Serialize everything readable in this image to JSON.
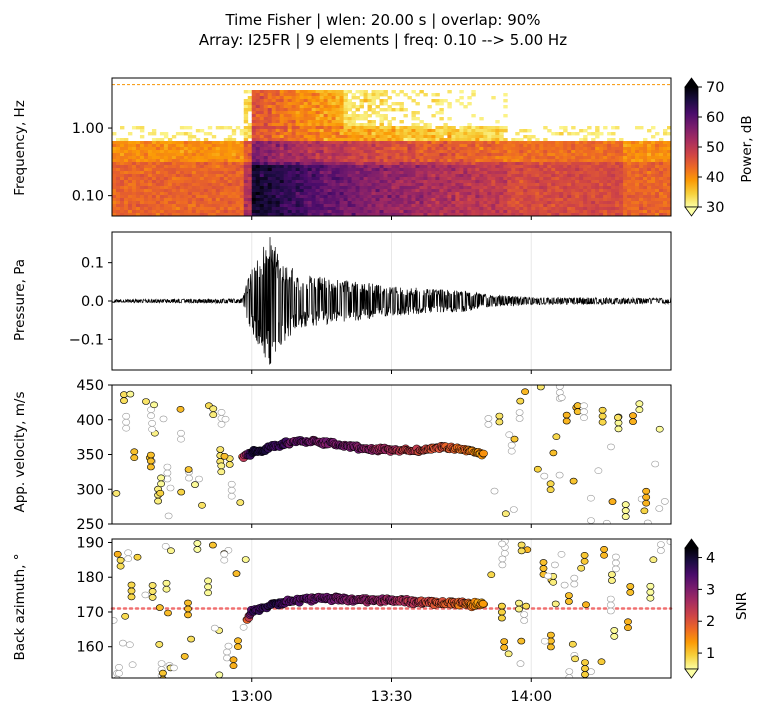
{
  "figure": {
    "title_line1": "Time Fisher | wlen: 20.00 s | overlap: 90%",
    "title_line2": "Array: I25FR | 9 elements | freq: 0.10 --> 5.00 Hz"
  },
  "panels": {
    "spectrogram": {
      "ylabel": "Frequency, Hz",
      "yticks": [
        "1.00",
        "0.10"
      ]
    },
    "pressure": {
      "ylabel": "Pressure, Pa",
      "yticks": [
        "0.1",
        "0.0",
        "−0.1"
      ]
    },
    "velocity": {
      "ylabel": "App. velocity, m/s",
      "yticks": [
        "450",
        "400",
        "350",
        "300",
        "250"
      ]
    },
    "azimuth": {
      "ylabel": "Back azimuth, °",
      "yticks": [
        "190",
        "180",
        "170",
        "160"
      ]
    }
  },
  "colorbars": {
    "power": {
      "label": "Power, dB",
      "ticks": [
        "70",
        "60",
        "50",
        "40",
        "30"
      ]
    },
    "snr": {
      "label": "SNR",
      "ticks": [
        "4",
        "3",
        "2",
        "1"
      ]
    }
  },
  "colors": {
    "inferno": [
      "#000004",
      "#1b0c41",
      "#4a0c6b",
      "#781c6d",
      "#a52c60",
      "#cf4446",
      "#ed6925",
      "#fb9b06",
      "#f7d13d",
      "#fcffa4"
    ],
    "reference_line": "#f07070",
    "waveform": "#000000"
  },
  "x_axis": {
    "ticks": [
      "13:00",
      "13:30",
      "14:00"
    ]
  },
  "chart_data": [
    {
      "type": "heatmap",
      "title": "Time Fisher | wlen: 20.00 s | overlap: 90%",
      "ylabel": "Frequency, Hz",
      "yscale": "log",
      "ylim": [
        0.05,
        5.5
      ],
      "xlim": [
        "12:30",
        "14:30"
      ],
      "colorbar": {
        "label": "Power, dB",
        "range": [
          30,
          70
        ]
      },
      "description_points": [
        {
          "time": "12:40",
          "freq_range": [
            0.1,
            0.3
          ],
          "power_db": 45
        },
        {
          "time": "13:05",
          "freq_range": [
            0.06,
            0.3
          ],
          "power_db": 68
        },
        {
          "time": "13:05",
          "freq_range": [
            0.3,
            3.0
          ],
          "power_db": 58
        },
        {
          "time": "13:25",
          "freq_range": [
            0.1,
            2.0
          ],
          "power_db": 52
        },
        {
          "time": "13:50",
          "freq_range": [
            0.1,
            0.6
          ],
          "power_db": 45
        },
        {
          "time": "14:15",
          "freq_range": [
            0.1,
            0.3
          ],
          "power_db": 42
        }
      ]
    },
    {
      "type": "line",
      "ylabel": "Pressure, Pa",
      "ylim": [
        -0.18,
        0.18
      ],
      "xlim": [
        "12:30",
        "14:30"
      ],
      "envelope": [
        {
          "time": "12:30",
          "amp": 0.004
        },
        {
          "time": "12:58",
          "amp": 0.006
        },
        {
          "time": "12:59",
          "amp": 0.05
        },
        {
          "time": "13:02",
          "amp": 0.14
        },
        {
          "time": "13:04",
          "amp": 0.17
        },
        {
          "time": "13:06",
          "amp": 0.12
        },
        {
          "time": "13:10",
          "amp": 0.07
        },
        {
          "time": "13:20",
          "amp": 0.055
        },
        {
          "time": "13:30",
          "amp": 0.04
        },
        {
          "time": "13:40",
          "amp": 0.03
        },
        {
          "time": "13:45",
          "amp": 0.03
        },
        {
          "time": "13:50",
          "amp": 0.018
        },
        {
          "time": "14:00",
          "amp": 0.01
        },
        {
          "time": "14:30",
          "amp": 0.007
        }
      ]
    },
    {
      "type": "scatter",
      "ylabel": "App. velocity, m/s",
      "ylim": [
        250,
        450
      ],
      "xlim": [
        "12:30",
        "14:30"
      ],
      "coherent_band": [
        {
          "time": "12:58",
          "velocity": 345,
          "snr": 2.0
        },
        {
          "time": "13:00",
          "velocity": 352,
          "snr": 4.0
        },
        {
          "time": "13:05",
          "velocity": 362,
          "snr": 3.6
        },
        {
          "time": "13:10",
          "velocity": 370,
          "snr": 3.2
        },
        {
          "time": "13:15",
          "velocity": 368,
          "snr": 3.0
        },
        {
          "time": "13:20",
          "velocity": 362,
          "snr": 3.1
        },
        {
          "time": "13:25",
          "velocity": 358,
          "snr": 2.8
        },
        {
          "time": "13:30",
          "velocity": 357,
          "snr": 2.5
        },
        {
          "time": "13:35",
          "velocity": 355,
          "snr": 2.2
        },
        {
          "time": "13:40",
          "velocity": 360,
          "snr": 2.0
        },
        {
          "time": "13:45",
          "velocity": 358,
          "snr": 1.8
        },
        {
          "time": "13:50",
          "velocity": 350,
          "snr": 1.3
        }
      ]
    },
    {
      "type": "scatter",
      "ylabel": "Back azimuth, °",
      "ylim": [
        151,
        191
      ],
      "xlim": [
        "12:30",
        "14:30"
      ],
      "reference_line": 171,
      "colorbar": {
        "label": "SNR",
        "range": [
          0.5,
          4.3
        ]
      },
      "coherent_band": [
        {
          "time": "12:59",
          "azimuth": 168,
          "snr": 1.8
        },
        {
          "time": "13:00",
          "azimuth": 170,
          "snr": 3.5
        },
        {
          "time": "13:05",
          "azimuth": 172.5,
          "snr": 3.7
        },
        {
          "time": "13:10",
          "azimuth": 173.5,
          "snr": 3.3
        },
        {
          "time": "13:15",
          "azimuth": 174,
          "snr": 3.2
        },
        {
          "time": "13:20",
          "azimuth": 173.5,
          "snr": 3.0
        },
        {
          "time": "13:25",
          "azimuth": 173.5,
          "snr": 2.8
        },
        {
          "time": "13:30",
          "azimuth": 173.5,
          "snr": 2.7
        },
        {
          "time": "13:35",
          "azimuth": 173,
          "snr": 2.4
        },
        {
          "time": "13:40",
          "azimuth": 172.5,
          "snr": 2.0
        },
        {
          "time": "13:45",
          "azimuth": 172.5,
          "snr": 1.8
        },
        {
          "time": "13:50",
          "azimuth": 172,
          "snr": 1.3
        }
      ]
    }
  ]
}
